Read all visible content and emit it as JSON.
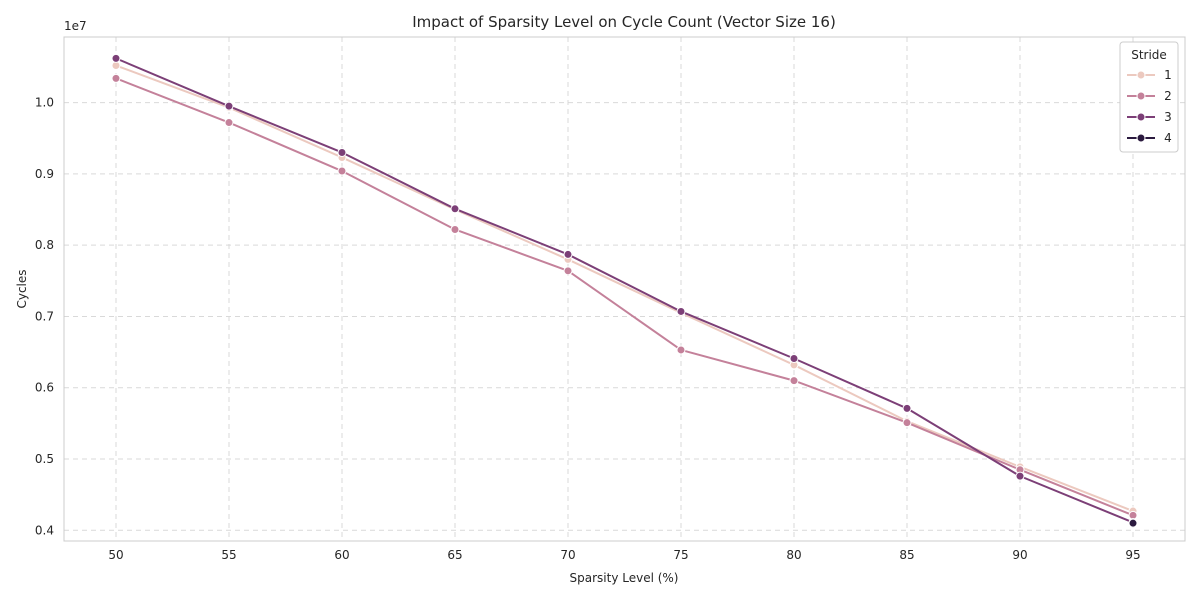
{
  "chart_data": {
    "type": "line",
    "title": "Impact of Sparsity Level on Cycle Count (Vector Size 16)",
    "xlabel": "Sparsity Level (%)",
    "ylabel": "Cycles",
    "y_scale_label": "1e7",
    "x": [
      50,
      55,
      60,
      65,
      70,
      75,
      80,
      85,
      90,
      95
    ],
    "xlim": [
      47.7,
      97.3
    ],
    "ylim": [
      0.385,
      1.092
    ],
    "x_ticks": [
      "50",
      "55",
      "60",
      "65",
      "70",
      "75",
      "80",
      "85",
      "90",
      "95"
    ],
    "y_ticks": [
      0.4,
      0.5,
      0.6,
      0.7,
      0.8,
      0.9,
      1.0
    ],
    "y_tick_labels": [
      "0.4",
      "0.5",
      "0.6",
      "0.7",
      "0.8",
      "0.9",
      "1.0"
    ],
    "grid": true,
    "legend": {
      "title": "Stride",
      "position": "top-right"
    },
    "series": [
      {
        "name": "1",
        "color": "#ecc9bf",
        "values": [
          1.052,
          0.993,
          0.923,
          0.85,
          0.78,
          0.705,
          0.632,
          0.553,
          0.489,
          0.427
        ]
      },
      {
        "name": "2",
        "color": "#c4819a",
        "values": [
          1.034,
          0.972,
          0.904,
          0.822,
          0.764,
          0.653,
          0.61,
          0.551,
          0.485,
          0.421
        ]
      },
      {
        "name": "3",
        "color": "#7c3f77",
        "values": [
          1.062,
          0.995,
          0.93,
          0.851,
          0.787,
          0.707,
          0.641,
          0.571,
          0.476,
          0.411
        ]
      },
      {
        "name": "4",
        "color": "#2b1a3f",
        "values": [
          null,
          null,
          null,
          null,
          null,
          null,
          null,
          null,
          null,
          0.41
        ]
      }
    ]
  }
}
